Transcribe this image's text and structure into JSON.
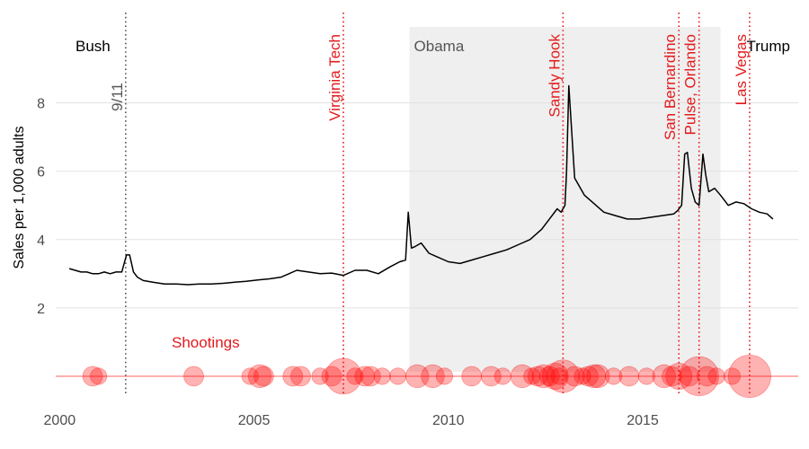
{
  "chart_data": {
    "type": "line",
    "title": "",
    "xlabel": "",
    "ylabel": "Sales per 1,000 adults",
    "xlim": [
      1999.9,
      2019.0
    ],
    "ylim": [
      -0.5,
      10.8
    ],
    "x_ticks": [
      2000,
      2005,
      2010,
      2015
    ],
    "x_tick_labels": [
      "2000",
      "2005",
      "2010",
      "2015"
    ],
    "y_ticks": [
      2,
      4,
      6,
      8
    ],
    "y_tick_labels": [
      "2",
      "4",
      "6",
      "8"
    ],
    "grid": true,
    "line_color": "#000000",
    "event_color": "#e41a1c",
    "shading_color": "#efefef",
    "presidents": [
      {
        "name": "Bush",
        "start": 1999.9,
        "end": 2009.0,
        "color": "#000000",
        "shaded": false
      },
      {
        "name": "Obama",
        "start": 2009.0,
        "end": 2017.0,
        "color": "#555555",
        "shaded": true
      },
      {
        "name": "Trump",
        "start": 2017.0,
        "end": 2019.0,
        "color": "#000000",
        "shaded": false
      }
    ],
    "events": [
      {
        "label": "9/11",
        "x": 2001.7,
        "color": "#555555"
      },
      {
        "label": "Virginia Tech",
        "x": 2007.3,
        "color": "#e41a1c"
      },
      {
        "label": "Sandy Hook",
        "x": 2012.95,
        "color": "#e41a1c"
      },
      {
        "label": "San Bernardino",
        "x": 2015.93,
        "color": "#e41a1c"
      },
      {
        "label": "Pulse, Orlando",
        "x": 2016.45,
        "color": "#e41a1c"
      },
      {
        "label": "Las Vegas",
        "x": 2017.75,
        "color": "#e41a1c"
      }
    ],
    "series": [
      {
        "x": [
          2000.25,
          2000.4,
          2000.55,
          2000.7,
          2000.85,
          2001.0,
          2001.15,
          2001.3,
          2001.45,
          2001.6,
          2001.72,
          2001.8,
          2001.9,
          2002.0,
          2002.15,
          2002.4,
          2002.7,
          2003.0,
          2003.3,
          2003.6,
          2003.9,
          2004.2,
          2004.5,
          2004.8,
          2005.1,
          2005.4,
          2005.7,
          2005.9,
          2006.1,
          2006.4,
          2006.7,
          2007.0,
          2007.3,
          2007.6,
          2007.9,
          2008.2,
          2008.5,
          2008.75,
          2008.9,
          2008.97,
          2009.05,
          2009.15,
          2009.3,
          2009.5,
          2009.7,
          2010.0,
          2010.3,
          2010.6,
          2010.9,
          2011.2,
          2011.5,
          2011.8,
          2012.1,
          2012.4,
          2012.6,
          2012.8,
          2012.9,
          2013.0,
          2013.04,
          2013.1,
          2013.25,
          2013.5,
          2013.8,
          2014.0,
          2014.3,
          2014.6,
          2014.9,
          2015.2,
          2015.5,
          2015.8,
          2015.9,
          2016.0,
          2016.08,
          2016.15,
          2016.25,
          2016.35,
          2016.45,
          2016.55,
          2016.62,
          2016.7,
          2016.85,
          2017.0,
          2017.2,
          2017.4,
          2017.6,
          2017.8,
          2018.0,
          2018.2,
          2018.35
        ],
        "y": [
          3.15,
          3.1,
          3.05,
          3.05,
          3.0,
          3.0,
          3.05,
          3.0,
          3.05,
          3.05,
          3.55,
          3.55,
          3.05,
          2.9,
          2.8,
          2.75,
          2.7,
          2.7,
          2.68,
          2.7,
          2.7,
          2.72,
          2.75,
          2.78,
          2.82,
          2.85,
          2.9,
          3.0,
          3.1,
          3.05,
          3.0,
          3.02,
          2.95,
          3.1,
          3.1,
          3.0,
          3.2,
          3.35,
          3.4,
          4.8,
          3.75,
          3.8,
          3.9,
          3.6,
          3.5,
          3.35,
          3.3,
          3.4,
          3.5,
          3.6,
          3.7,
          3.85,
          4.0,
          4.3,
          4.6,
          4.9,
          4.8,
          5.0,
          6.0,
          8.5,
          5.8,
          5.3,
          5.0,
          4.8,
          4.7,
          4.6,
          4.6,
          4.65,
          4.7,
          4.75,
          4.85,
          5.0,
          6.5,
          6.55,
          5.5,
          5.1,
          5.0,
          6.5,
          5.9,
          5.4,
          5.5,
          5.3,
          5.0,
          5.1,
          5.05,
          4.9,
          4.8,
          4.75,
          4.6
        ]
      }
    ],
    "shootings": {
      "label": "Shootings",
      "y": 0,
      "color": "#ff0000",
      "x": [
        2000.85,
        2001.0,
        2003.45,
        2004.9,
        2005.15,
        2005.25,
        2006.0,
        2006.2,
        2006.7,
        2007.0,
        2007.3,
        2007.6,
        2007.85,
        2008.0,
        2008.3,
        2008.7,
        2009.2,
        2009.6,
        2009.9,
        2010.6,
        2011.1,
        2011.4,
        2011.9,
        2012.15,
        2012.3,
        2012.45,
        2012.6,
        2012.75,
        2012.85,
        2012.95,
        2013.25,
        2013.45,
        2013.6,
        2013.75,
        2013.85,
        2014.25,
        2014.65,
        2015.1,
        2015.55,
        2015.75,
        2015.93,
        2016.2,
        2016.45,
        2016.65,
        2016.9,
        2017.3,
        2017.75
      ],
      "size": [
        5,
        4,
        5,
        4,
        6,
        5,
        5,
        5,
        4,
        5,
        10,
        4,
        5,
        5,
        4,
        4,
        6,
        6,
        4,
        5,
        5,
        4,
        6,
        4,
        5,
        6,
        5,
        7,
        4,
        9,
        5,
        4,
        5,
        6,
        6,
        4,
        5,
        4,
        6,
        5,
        7,
        5,
        11,
        5,
        4,
        4,
        12
      ]
    },
    "hline_y": 0,
    "legend": "none"
  }
}
